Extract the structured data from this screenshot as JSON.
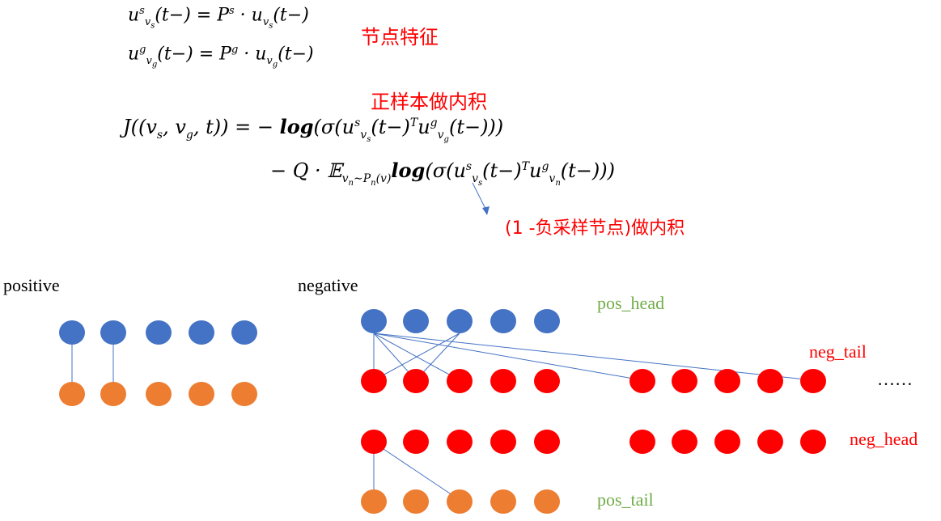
{
  "equations": {
    "eq1": "u^s_{v_s}(t−) = P^s · u_{v_s}(t−)",
    "eq2": "u^g_{v_g}(t−) = P^g · u_{v_g}(t−)",
    "eq3": "J((v_s, v_g, t)) = − log(σ(u^s_{v_s}(t−)^T u^g_{v_g}(t−)))",
    "eq4": "− Q · 𝔼_{v_n∼P_n(v)} log(σ(u^s_{v_s}(t−)^T u^g_{v_n}(t−)))"
  },
  "annotations": {
    "node_feature": "节点特征",
    "positive_inner": "正样本做内积",
    "negative_inner": "(1 -负采样节点)做内积"
  },
  "labels": {
    "positive": "positive",
    "negative": "negative",
    "pos_head": "pos_head",
    "neg_tail": "neg_tail",
    "neg_head": "neg_head",
    "pos_tail": "pos_tail",
    "ellipsis": "……"
  },
  "colors": {
    "blue_node": "#4472c4",
    "orange_node": "#ed7d31",
    "red_node": "#ff0000",
    "edge": "#4472c4",
    "green_label": "#70ad47",
    "red_label": "#ff0000"
  }
}
